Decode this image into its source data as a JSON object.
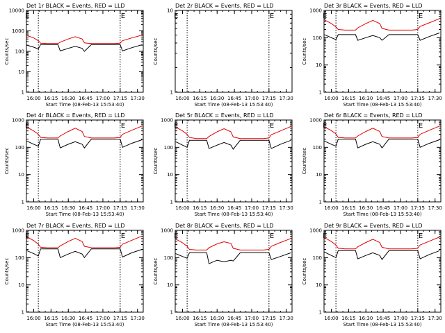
{
  "chart_data": [
    {
      "type": "line",
      "title": "Det 1r BLACK = Events, RED = LLD",
      "xlabel": "Start Time (08-Feb-13 15:53:40)",
      "ylabel": "Counts/sec",
      "y_scale": "log",
      "ylim": [
        1,
        10000
      ],
      "xlim": [
        "15:53:40",
        "17:35:00"
      ],
      "x_ticks": [
        "16:00",
        "16:15",
        "16:30",
        "16:45",
        "17:00",
        "17:15",
        "17:30"
      ],
      "y_ticks": [
        "1",
        "10",
        "100",
        "1000",
        "10000"
      ],
      "markers": [
        {
          "label": "E",
          "x": "16:04:00"
        },
        {
          "label": "E",
          "x": "17:15:00"
        }
      ],
      "x": [
        "15:54",
        "16:00",
        "16:04",
        "16:06",
        "16:12",
        "16:15",
        "16:21",
        "16:23",
        "16:30",
        "16:36",
        "16:42",
        "16:44",
        "16:50",
        "17:00",
        "17:10",
        "17:15",
        "17:17",
        "17:25",
        "17:34"
      ],
      "series": [
        {
          "name": "Events",
          "color": "#000000",
          "values": [
            200,
            160,
            130,
            215,
            215,
            215,
            215,
            105,
            140,
            175,
            140,
            100,
            215,
            215,
            215,
            215,
            105,
            150,
            210
          ]
        },
        {
          "name": "LLD",
          "color": "#e00000",
          "values": [
            600,
            450,
            330,
            250,
            240,
            240,
            240,
            280,
            400,
            520,
            400,
            260,
            240,
            240,
            240,
            250,
            330,
            450,
            620
          ]
        }
      ]
    },
    {
      "type": "line",
      "title": "Det 2r BLACK = Events, RED = LLD",
      "xlabel": "Start Time (08-Feb-13 15:53:40)",
      "ylabel": "Counts/sec",
      "y_scale": "log",
      "ylim": [
        1,
        10
      ],
      "xlim": [
        "15:53:40",
        "17:35:00"
      ],
      "x_ticks": [
        "16:00",
        "16:15",
        "16:30",
        "16:45",
        "17:00",
        "17:15",
        "17:30"
      ],
      "y_ticks": [
        "1",
        "10"
      ],
      "markers": [
        {
          "label": "E",
          "x": "16:04:00"
        },
        {
          "label": "E",
          "x": "17:15:00"
        }
      ],
      "x": [],
      "series": []
    },
    {
      "type": "line",
      "title": "Det 3r BLACK = Events, RED = LLD",
      "xlabel": "Start Time (08-Feb-13 15:53:40)",
      "ylabel": "Counts/sec",
      "y_scale": "log",
      "ylim": [
        1,
        1000
      ],
      "xlim": [
        "15:53:40",
        "17:35:00"
      ],
      "x_ticks": [
        "16:00",
        "16:15",
        "16:30",
        "16:45",
        "17:00",
        "17:15",
        "17:30"
      ],
      "y_ticks": [
        "1",
        "10",
        "100",
        "1000"
      ],
      "markers": [
        {
          "label": "E",
          "x": "16:04:00"
        },
        {
          "label": "E",
          "x": "17:15:00"
        }
      ],
      "x": [
        "15:54",
        "16:00",
        "16:04",
        "16:06",
        "16:12",
        "16:15",
        "16:21",
        "16:23",
        "16:30",
        "16:36",
        "16:42",
        "16:44",
        "16:50",
        "17:00",
        "17:10",
        "17:15",
        "17:17",
        "17:25",
        "17:34"
      ],
      "series": [
        {
          "name": "Events",
          "color": "#000000",
          "values": [
            130,
            100,
            85,
            130,
            130,
            130,
            130,
            80,
            100,
            120,
            100,
            80,
            130,
            130,
            130,
            130,
            80,
            110,
            150
          ]
        },
        {
          "name": "LLD",
          "color": "#e00000",
          "values": [
            450,
            330,
            250,
            200,
            190,
            190,
            190,
            230,
            330,
            430,
            330,
            220,
            190,
            190,
            190,
            200,
            260,
            350,
            500
          ]
        }
      ]
    },
    {
      "type": "line",
      "title": "Det 4r BLACK = Events, RED = LLD",
      "xlabel": "Start Time (08-Feb-13 15:53:40)",
      "ylabel": "Counts/sec",
      "y_scale": "log",
      "ylim": [
        1,
        1000
      ],
      "xlim": [
        "15:53:40",
        "17:35:00"
      ],
      "x_ticks": [
        "16:00",
        "16:15",
        "16:30",
        "16:45",
        "17:00",
        "17:15",
        "17:30"
      ],
      "y_ticks": [
        "1",
        "10",
        "100",
        "1000"
      ],
      "markers": [
        {
          "label": "E",
          "x": "16:04:00"
        },
        {
          "label": "E",
          "x": "17:15:00"
        }
      ],
      "x": [
        "15:54",
        "16:00",
        "16:04",
        "16:06",
        "16:12",
        "16:15",
        "16:21",
        "16:23",
        "16:30",
        "16:36",
        "16:42",
        "16:44",
        "16:50",
        "17:00",
        "17:10",
        "17:15",
        "17:17",
        "17:25",
        "17:34"
      ],
      "series": [
        {
          "name": "Events",
          "color": "#000000",
          "values": [
            170,
            130,
            110,
            200,
            200,
            200,
            200,
            95,
            130,
            160,
            130,
            95,
            200,
            200,
            200,
            200,
            100,
            140,
            190
          ]
        },
        {
          "name": "LLD",
          "color": "#e00000",
          "values": [
            550,
            400,
            300,
            230,
            220,
            220,
            220,
            260,
            380,
            500,
            380,
            250,
            220,
            220,
            220,
            230,
            300,
            420,
            600
          ]
        }
      ]
    },
    {
      "type": "line",
      "title": "Det 5r BLACK = Events, RED = LLD",
      "xlabel": "Start Time (08-Feb-13 15:53:40)",
      "ylabel": "Counts/sec",
      "y_scale": "log",
      "ylim": [
        1,
        1000
      ],
      "xlim": [
        "15:53:40",
        "17:35:00"
      ],
      "x_ticks": [
        "16:00",
        "16:15",
        "16:30",
        "16:45",
        "17:00",
        "17:15",
        "17:30"
      ],
      "y_ticks": [
        "1",
        "10",
        "100",
        "1000"
      ],
      "markers": [
        {
          "label": "E",
          "x": "16:04:00"
        },
        {
          "label": "E",
          "x": "17:15:00"
        }
      ],
      "x": [
        "15:54",
        "16:00",
        "16:04",
        "16:06",
        "16:12",
        "16:15",
        "16:21",
        "16:23",
        "16:30",
        "16:36",
        "16:42",
        "16:44",
        "16:50",
        "17:00",
        "17:10",
        "17:15",
        "17:17",
        "17:25",
        "17:34"
      ],
      "series": [
        {
          "name": "Events",
          "color": "#000000",
          "values": [
            160,
            120,
            100,
            180,
            180,
            180,
            180,
            90,
            120,
            150,
            120,
            85,
            180,
            180,
            180,
            180,
            90,
            130,
            180
          ]
        },
        {
          "name": "LLD",
          "color": "#e00000",
          "values": [
            550,
            400,
            300,
            230,
            210,
            210,
            210,
            250,
            370,
            480,
            370,
            240,
            210,
            210,
            210,
            220,
            290,
            400,
            580
          ]
        }
      ]
    },
    {
      "type": "line",
      "title": "Det 6r BLACK = Events, RED = LLD",
      "xlabel": "Start Time (08-Feb-13 15:53:40)",
      "ylabel": "Counts/sec",
      "y_scale": "log",
      "ylim": [
        1,
        1000
      ],
      "xlim": [
        "15:53:40",
        "17:35:00"
      ],
      "x_ticks": [
        "16:00",
        "16:15",
        "16:30",
        "16:45",
        "17:00",
        "17:15",
        "17:30"
      ],
      "y_ticks": [
        "1",
        "10",
        "100",
        "1000"
      ],
      "markers": [
        {
          "label": "E",
          "x": "16:04:00"
        },
        {
          "label": "E",
          "x": "17:15:00"
        }
      ],
      "x": [
        "15:54",
        "16:00",
        "16:04",
        "16:06",
        "16:12",
        "16:15",
        "16:21",
        "16:23",
        "16:30",
        "16:36",
        "16:42",
        "16:44",
        "16:50",
        "17:00",
        "17:10",
        "17:15",
        "17:17",
        "17:25",
        "17:34"
      ],
      "series": [
        {
          "name": "Events",
          "color": "#000000",
          "values": [
            170,
            130,
            110,
            200,
            200,
            200,
            200,
            95,
            130,
            160,
            130,
            95,
            200,
            200,
            200,
            200,
            100,
            140,
            190
          ]
        },
        {
          "name": "LLD",
          "color": "#e00000",
          "values": [
            560,
            410,
            310,
            230,
            220,
            220,
            220,
            260,
            380,
            500,
            380,
            250,
            220,
            220,
            220,
            230,
            300,
            420,
            600
          ]
        }
      ]
    },
    {
      "type": "line",
      "title": "Det 7r BLACK = Events, RED = LLD",
      "xlabel": "Start Time (08-Feb-13 15:53:40)",
      "ylabel": "Counts/sec",
      "y_scale": "log",
      "ylim": [
        1,
        1000
      ],
      "xlim": [
        "15:53:40",
        "17:35:00"
      ],
      "x_ticks": [
        "16:00",
        "16:15",
        "16:30",
        "16:45",
        "17:00",
        "17:15",
        "17:30"
      ],
      "y_ticks": [
        "1",
        "10",
        "100",
        "1000"
      ],
      "markers": [
        {
          "label": "E",
          "x": "16:04:00"
        },
        {
          "label": "E",
          "x": "17:15:00"
        }
      ],
      "x": [
        "15:54",
        "16:00",
        "16:04",
        "16:06",
        "16:12",
        "16:15",
        "16:21",
        "16:23",
        "16:30",
        "16:36",
        "16:42",
        "16:44",
        "16:50",
        "17:00",
        "17:10",
        "17:15",
        "17:17",
        "17:25",
        "17:34"
      ],
      "series": [
        {
          "name": "Events",
          "color": "#000000",
          "values": [
            180,
            140,
            115,
            210,
            210,
            210,
            210,
            100,
            135,
            170,
            135,
            100,
            210,
            210,
            210,
            210,
            105,
            150,
            200
          ]
        },
        {
          "name": "LLD",
          "color": "#e00000",
          "values": [
            580,
            420,
            310,
            240,
            230,
            230,
            230,
            270,
            390,
            510,
            390,
            260,
            230,
            230,
            230,
            240,
            310,
            430,
            620
          ]
        }
      ]
    },
    {
      "type": "line",
      "title": "Det 8r BLACK = Events, RED = LLD",
      "xlabel": "Start Time (08-Feb-13 15:53:40)",
      "ylabel": "Counts/sec",
      "y_scale": "log",
      "ylim": [
        1,
        1000
      ],
      "xlim": [
        "15:53:40",
        "17:35:00"
      ],
      "x_ticks": [
        "16:00",
        "16:15",
        "16:30",
        "16:45",
        "17:00",
        "17:15",
        "17:30"
      ],
      "y_ticks": [
        "1",
        "10",
        "100",
        "1000"
      ],
      "markers": [
        {
          "label": "E",
          "x": "16:04:00"
        },
        {
          "label": "E",
          "x": "17:15:00"
        }
      ],
      "x": [
        "15:54",
        "16:00",
        "16:04",
        "16:06",
        "16:12",
        "16:15",
        "16:21",
        "16:23",
        "16:30",
        "16:36",
        "16:42",
        "16:44",
        "16:50",
        "17:00",
        "17:10",
        "17:15",
        "17:17",
        "17:25",
        "17:34"
      ],
      "series": [
        {
          "name": "Events",
          "color": "#000000",
          "values": [
            140,
            110,
            95,
            150,
            150,
            150,
            150,
            60,
            80,
            70,
            80,
            75,
            150,
            150,
            150,
            150,
            85,
            110,
            150
          ]
        },
        {
          "name": "LLD",
          "color": "#e00000",
          "values": [
            480,
            350,
            260,
            200,
            190,
            190,
            190,
            230,
            320,
            380,
            330,
            220,
            190,
            190,
            190,
            200,
            260,
            360,
            500
          ]
        }
      ]
    },
    {
      "type": "line",
      "title": "Det 9r BLACK = Events, RED = LLD",
      "xlabel": "Start Time (08-Feb-13 15:53:40)",
      "ylabel": "Counts/sec",
      "y_scale": "log",
      "ylim": [
        1,
        1000
      ],
      "xlim": [
        "15:53:40",
        "17:35:00"
      ],
      "x_ticks": [
        "16:00",
        "16:15",
        "16:30",
        "16:45",
        "17:00",
        "17:15",
        "17:30"
      ],
      "y_ticks": [
        "1",
        "10",
        "100",
        "1000"
      ],
      "markers": [
        {
          "label": "E",
          "x": "16:04:00"
        },
        {
          "label": "E",
          "x": "17:15:00"
        }
      ],
      "x": [
        "15:54",
        "16:00",
        "16:04",
        "16:06",
        "16:12",
        "16:15",
        "16:21",
        "16:23",
        "16:30",
        "16:36",
        "16:42",
        "16:44",
        "16:50",
        "17:00",
        "17:10",
        "17:15",
        "17:17",
        "17:25",
        "17:34"
      ],
      "series": [
        {
          "name": "Events",
          "color": "#000000",
          "values": [
            160,
            120,
            100,
            180,
            180,
            180,
            180,
            90,
            120,
            150,
            120,
            85,
            180,
            180,
            180,
            180,
            90,
            130,
            180
          ]
        },
        {
          "name": "LLD",
          "color": "#e00000",
          "values": [
            540,
            390,
            290,
            220,
            210,
            210,
            210,
            250,
            360,
            470,
            360,
            240,
            210,
            210,
            210,
            220,
            290,
            400,
            570
          ]
        }
      ]
    }
  ]
}
